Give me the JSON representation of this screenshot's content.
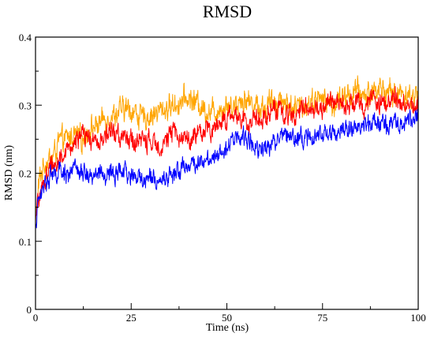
{
  "chart_data": {
    "type": "line",
    "title": "RMSD",
    "xlabel": "Time (ns)",
    "ylabel": "RMSD (nm)",
    "xlim": [
      0,
      100
    ],
    "ylim": [
      0,
      0.4
    ],
    "xticks": [
      0,
      25,
      50,
      75,
      100
    ],
    "xtick_labels": [
      "0",
      "25",
      "50",
      "75",
      "100"
    ],
    "yticks": [
      0,
      0.1,
      0.2,
      0.3,
      0.4
    ],
    "ytick_labels": [
      "0",
      "0.1",
      "0.2",
      "0.3",
      "0.4"
    ],
    "grid": false,
    "legend": "none",
    "series": [
      {
        "color": "#ffa500",
        "noise": 0.013,
        "x": [
          0,
          0.5,
          1,
          2,
          3,
          4,
          5,
          6,
          8,
          10,
          12,
          14,
          16,
          18,
          20,
          22,
          24,
          26,
          28,
          30,
          32,
          34,
          36,
          38,
          40,
          42,
          44,
          46,
          48,
          50,
          52,
          54,
          56,
          58,
          60,
          62,
          64,
          66,
          68,
          70,
          72,
          74,
          76,
          78,
          80,
          82,
          84,
          86,
          88,
          90,
          92,
          94,
          96,
          98,
          100
        ],
        "values": [
          0.13,
          0.16,
          0.19,
          0.21,
          0.22,
          0.22,
          0.23,
          0.245,
          0.25,
          0.255,
          0.25,
          0.265,
          0.27,
          0.28,
          0.285,
          0.29,
          0.295,
          0.29,
          0.28,
          0.285,
          0.29,
          0.295,
          0.3,
          0.305,
          0.31,
          0.305,
          0.295,
          0.29,
          0.295,
          0.3,
          0.3,
          0.31,
          0.305,
          0.3,
          0.295,
          0.305,
          0.31,
          0.3,
          0.295,
          0.3,
          0.305,
          0.31,
          0.305,
          0.3,
          0.31,
          0.315,
          0.32,
          0.315,
          0.32,
          0.325,
          0.32,
          0.315,
          0.32,
          0.31,
          0.315
        ]
      },
      {
        "color": "#ff0000",
        "noise": 0.011,
        "x": [
          0,
          0.5,
          1,
          2,
          3,
          4,
          5,
          6,
          8,
          10,
          12,
          14,
          16,
          18,
          20,
          22,
          24,
          26,
          28,
          30,
          32,
          34,
          36,
          38,
          40,
          42,
          44,
          46,
          48,
          50,
          52,
          54,
          56,
          58,
          60,
          62,
          64,
          66,
          68,
          70,
          72,
          74,
          76,
          78,
          80,
          82,
          84,
          86,
          88,
          90,
          92,
          94,
          96,
          98,
          100
        ],
        "values": [
          0.12,
          0.15,
          0.17,
          0.18,
          0.2,
          0.21,
          0.215,
          0.22,
          0.23,
          0.245,
          0.255,
          0.25,
          0.245,
          0.255,
          0.26,
          0.255,
          0.25,
          0.245,
          0.25,
          0.245,
          0.24,
          0.25,
          0.26,
          0.255,
          0.25,
          0.255,
          0.26,
          0.265,
          0.275,
          0.28,
          0.285,
          0.28,
          0.275,
          0.28,
          0.285,
          0.295,
          0.29,
          0.285,
          0.29,
          0.3,
          0.295,
          0.29,
          0.3,
          0.305,
          0.31,
          0.3,
          0.305,
          0.3,
          0.31,
          0.3,
          0.305,
          0.31,
          0.305,
          0.3,
          0.3
        ]
      },
      {
        "color": "#0000ff",
        "noise": 0.01,
        "x": [
          0,
          0.5,
          1,
          2,
          3,
          4,
          5,
          6,
          8,
          10,
          12,
          14,
          16,
          18,
          20,
          22,
          24,
          26,
          28,
          30,
          32,
          34,
          36,
          38,
          40,
          42,
          44,
          46,
          48,
          50,
          52,
          54,
          56,
          58,
          60,
          62,
          64,
          66,
          68,
          70,
          72,
          74,
          76,
          78,
          80,
          82,
          84,
          86,
          88,
          90,
          92,
          94,
          96,
          98,
          100
        ],
        "values": [
          0.12,
          0.15,
          0.16,
          0.18,
          0.19,
          0.2,
          0.195,
          0.2,
          0.2,
          0.205,
          0.2,
          0.198,
          0.2,
          0.195,
          0.198,
          0.202,
          0.198,
          0.195,
          0.19,
          0.195,
          0.19,
          0.192,
          0.2,
          0.205,
          0.212,
          0.215,
          0.22,
          0.225,
          0.232,
          0.24,
          0.25,
          0.255,
          0.245,
          0.24,
          0.238,
          0.245,
          0.255,
          0.26,
          0.255,
          0.25,
          0.252,
          0.255,
          0.26,
          0.26,
          0.265,
          0.262,
          0.268,
          0.27,
          0.272,
          0.275,
          0.272,
          0.275,
          0.278,
          0.28,
          0.285
        ]
      }
    ]
  }
}
